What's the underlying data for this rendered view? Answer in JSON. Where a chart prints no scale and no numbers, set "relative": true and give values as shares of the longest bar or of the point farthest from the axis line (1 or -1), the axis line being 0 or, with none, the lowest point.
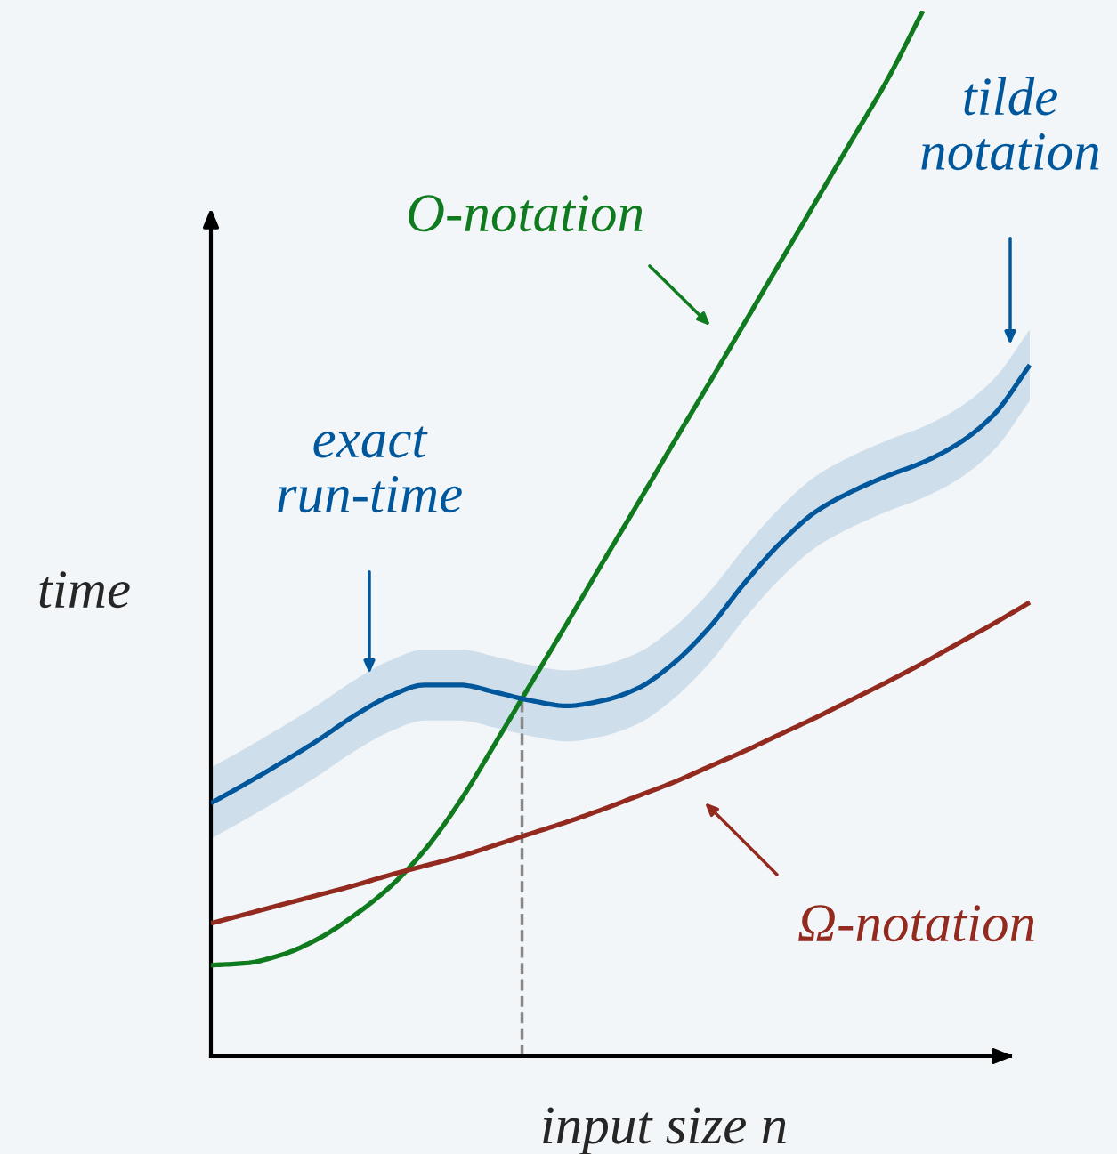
{
  "chart_data": {
    "type": "line",
    "relative": true,
    "xlabel": "input size n",
    "ylabel": "time",
    "categories": [
      null,
      null,
      null,
      null,
      null,
      null,
      null,
      null,
      null,
      null,
      null,
      null,
      null,
      null,
      null,
      null,
      null,
      null,
      null,
      null,
      null,
      null,
      null,
      null,
      null
    ],
    "series": [
      {
        "color": "#107a1e",
        "values": [
          0.087,
          0.089,
          0.097,
          0.112,
          0.134,
          0.161,
          0.197,
          0.244,
          0.3,
          0.357,
          0.414,
          0.472,
          0.529,
          0.587,
          0.644,
          0.702,
          0.76,
          0.818,
          0.876,
          0.934,
          1.0,
          null,
          null,
          null,
          null
        ]
      },
      {
        "color": "#00579b",
        "values": [
          0.242,
          0.261,
          0.281,
          0.302,
          0.325,
          0.344,
          0.355,
          0.355,
          0.348,
          0.34,
          0.335,
          0.34,
          0.352,
          0.376,
          0.41,
          0.453,
          0.491,
          0.521,
          0.54,
          0.555,
          0.568,
          0.586,
          0.614,
          0.661,
          null
        ],
        "lower": [
          0.208,
          0.227,
          0.247,
          0.268,
          0.291,
          0.31,
          0.321,
          0.321,
          0.314,
          0.306,
          0.301,
          0.306,
          0.318,
          0.342,
          0.376,
          0.419,
          0.457,
          0.487,
          0.506,
          0.521,
          0.534,
          0.552,
          0.58,
          0.627,
          null
        ],
        "upper": [
          0.276,
          0.295,
          0.315,
          0.336,
          0.359,
          0.378,
          0.389,
          0.389,
          0.382,
          0.374,
          0.369,
          0.374,
          0.386,
          0.41,
          0.444,
          0.487,
          0.525,
          0.555,
          0.574,
          0.589,
          0.602,
          0.62,
          0.648,
          0.695,
          null
        ]
      },
      {
        "color": "#932a1f",
        "values": [
          0.127,
          0.136,
          0.145,
          0.154,
          0.163,
          0.173,
          0.182,
          0.191,
          0.202,
          0.213,
          0.224,
          0.236,
          0.249,
          0.262,
          0.277,
          0.292,
          0.308,
          0.324,
          0.341,
          0.358,
          0.376,
          0.395,
          0.414,
          0.434,
          null
        ]
      }
    ],
    "annotations": [
      "O-notation",
      "tilde\nnotation",
      "exact\nrun-time",
      "Ω-notation"
    ]
  }
}
